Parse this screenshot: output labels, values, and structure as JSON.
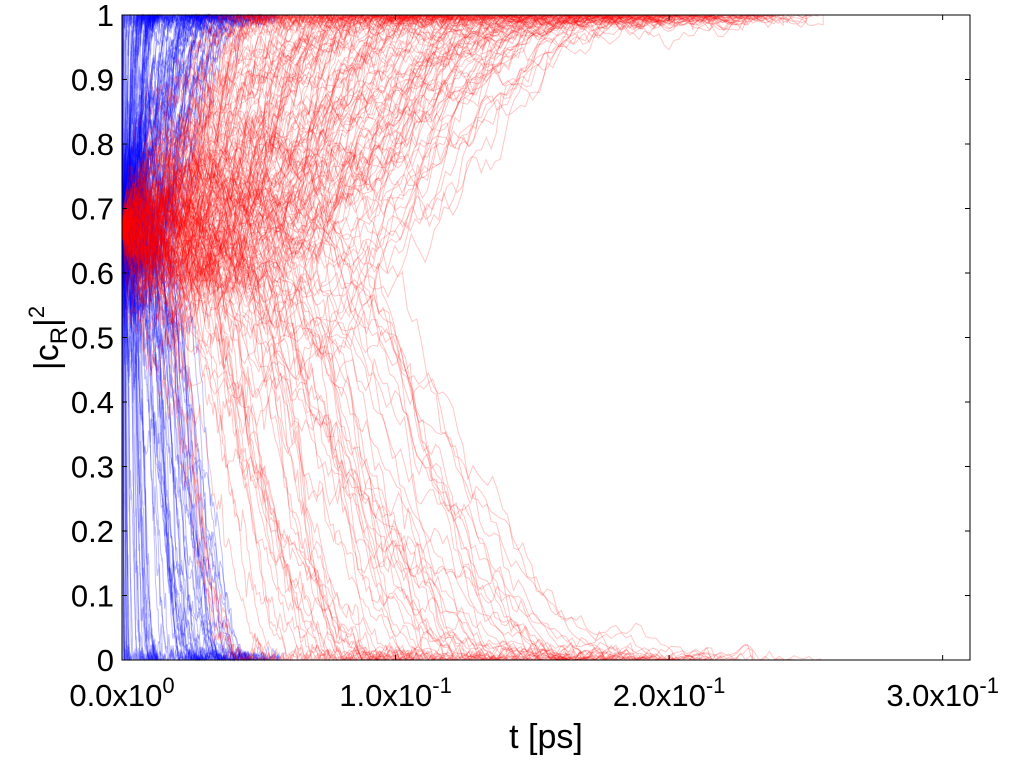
{
  "chart_data": {
    "type": "line",
    "xlabel": "t [ps]",
    "ylabel": {
      "prefix": "|c",
      "subscript": "R",
      "suffix": "|",
      "superscript": "2"
    },
    "xlim": [
      0,
      0.31
    ],
    "ylim": [
      0,
      1
    ],
    "x_ticks": [
      {
        "value": 0.0,
        "mantissa": "0.0x10",
        "exponent": "0"
      },
      {
        "value": 0.1,
        "mantissa": "1.0x10",
        "exponent": "-1"
      },
      {
        "value": 0.2,
        "mantissa": "2.0x10",
        "exponent": "-1"
      },
      {
        "value": 0.3,
        "mantissa": "3.0x10",
        "exponent": "-1"
      }
    ],
    "y_ticks": [
      {
        "value": 0.0,
        "label": "0"
      },
      {
        "value": 0.1,
        "label": "0.1"
      },
      {
        "value": 0.2,
        "label": "0.2"
      },
      {
        "value": 0.3,
        "label": "0.3"
      },
      {
        "value": 0.4,
        "label": "0.4"
      },
      {
        "value": 0.5,
        "label": "0.5"
      },
      {
        "value": 0.6,
        "label": "0.6"
      },
      {
        "value": 0.7,
        "label": "0.7"
      },
      {
        "value": 0.8,
        "label": "0.8"
      },
      {
        "value": 0.9,
        "label": "0.9"
      },
      {
        "value": 1.0,
        "label": "1"
      }
    ],
    "grid": false,
    "legend": null,
    "initial_value": 0.67,
    "series": [
      {
        "color": "#0000ff",
        "opacity": 0.25,
        "trajectory_count": 200,
        "collapse_time_range": [
          0.0,
          0.06
        ]
      },
      {
        "color": "#ff0000",
        "opacity": 0.22,
        "trajectory_count": 220,
        "collapse_time_range": [
          0.05,
          0.26
        ]
      }
    ]
  }
}
